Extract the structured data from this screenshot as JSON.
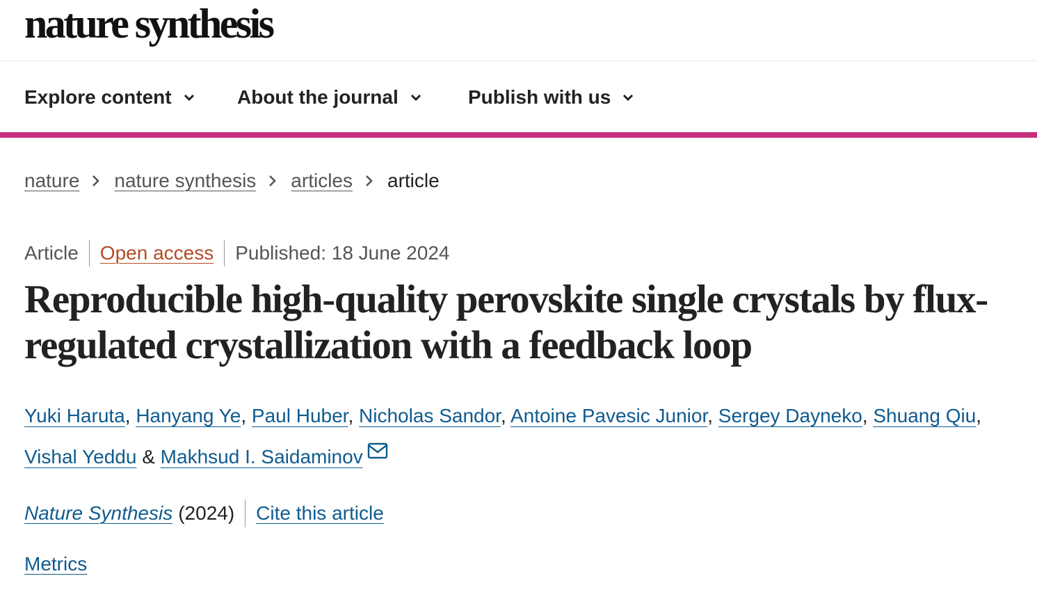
{
  "header": {
    "logo": "nature synthesis"
  },
  "nav": {
    "items": [
      {
        "label": "Explore content"
      },
      {
        "label": "About the journal"
      },
      {
        "label": "Publish with us"
      }
    ]
  },
  "breadcrumb": {
    "items": [
      "nature",
      "nature synthesis",
      "articles"
    ],
    "current": "article"
  },
  "meta": {
    "type": "Article",
    "access": "Open access",
    "published": "Published: 18 June 2024"
  },
  "article": {
    "title": "Reproducible high-quality perovskite single crystals by flux-regulated crystallization with a feedback loop",
    "authors": [
      "Yuki Haruta",
      "Hanyang Ye",
      "Paul Huber",
      "Nicholas Sandor",
      "Antoine Pavesic Junior",
      "Sergey Dayneko",
      "Shuang Qiu",
      "Vishal Yeddu",
      "Makhsud I. Saidaminov"
    ],
    "journal_name": "Nature Synthesis",
    "year": "(2024)",
    "cite_label": "Cite this article",
    "metrics_label": "Metrics"
  },
  "icons": {
    "chevron": "chevron-down-icon",
    "separator": "chevron-right-icon",
    "mail": "mail-icon"
  },
  "colors": {
    "accent": "#c72d7d",
    "link": "#0f5b8f",
    "open_access": "#b54b25",
    "muted": "#555555"
  }
}
